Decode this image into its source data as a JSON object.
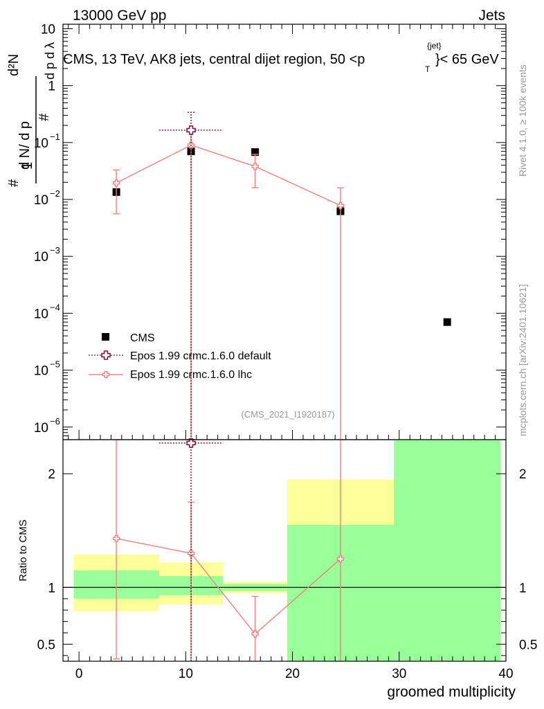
{
  "header": {
    "energy_label": "13000 GeV pp",
    "category_label": "Jets",
    "plot_title_main": "CMS, 13 TeV, AK8 jets, central dijet region, 50 <p",
    "plot_title_sub": "T",
    "plot_title_sup": "{jet}",
    "plot_title_tail": "}< 65 GeV",
    "analysis_id": "(CMS_2021_I1920187)",
    "side_label_top": "Rivet 4.1.0, ≥ 100k events",
    "side_label_bottom": "mcplots.cern.ch [arXiv:2401.10621]"
  },
  "legend": {
    "data_label": "CMS",
    "mc1_label": "Epos 1.99 crmc.1.6.0 default",
    "mc2_label": "Epos 1.99 crmc.1.6.0 lhc"
  },
  "colors": {
    "data": "#000000",
    "mc1": "#7a1a3a",
    "mc2": "#f08080",
    "band_inner": "#99ff99",
    "band_outer": "#ffff99"
  },
  "chart_data": [
    {
      "type": "scatter",
      "panel": "main",
      "y_scale": "log",
      "ylabel": "1/N dN/dp_T / (d^2N/dp_T dλ)",
      "ylim": [
        6e-07,
        12
      ],
      "yticks": [
        {
          "value": 1e-06,
          "label": "10",
          "exp": "−6"
        },
        {
          "value": 1e-05,
          "label": "10",
          "exp": "−5"
        },
        {
          "value": 0.0001,
          "label": "10",
          "exp": "−4"
        },
        {
          "value": 0.001,
          "label": "10",
          "exp": "−3"
        },
        {
          "value": 0.01,
          "label": "10",
          "exp": "−2"
        },
        {
          "value": 0.1,
          "label": "10",
          "exp": "−1"
        },
        {
          "value": 1,
          "label": "1",
          "exp": ""
        },
        {
          "value": 10,
          "label": "10",
          "exp": ""
        }
      ],
      "series": [
        {
          "name": "CMS",
          "style": "square",
          "points": [
            {
              "x": 3.5,
              "y": 0.0135
            },
            {
              "x": 10.5,
              "y": 0.07
            },
            {
              "x": 16.5,
              "y": 0.068
            },
            {
              "x": 24.5,
              "y": 0.0062
            },
            {
              "x": 34.5,
              "y": 7e-05
            }
          ]
        },
        {
          "name": "Epos 1.99 crmc.1.6.0 default",
          "style": "open-cross-dotted",
          "points": [
            {
              "x": 10.5,
              "y": 0.165,
              "ylo": 1e-07,
              "yhi": 0.34,
              "xlo": 7.5,
              "xhi": 13.5
            }
          ]
        },
        {
          "name": "Epos 1.99 crmc.1.6.0 lhc",
          "style": "open-cross-line",
          "points": [
            {
              "x": 3.5,
              "y": 0.0195,
              "ylo": 0.0056,
              "yhi": 0.033
            },
            {
              "x": 10.5,
              "y": 0.09,
              "ylo": 1e-07,
              "yhi": 0.17
            },
            {
              "x": 16.5,
              "y": 0.038,
              "ylo": 0.016,
              "yhi": 0.062
            },
            {
              "x": 24.5,
              "y": 0.0078,
              "ylo": 1e-07,
              "yhi": 0.016
            }
          ]
        }
      ]
    },
    {
      "type": "scatter",
      "panel": "ratio",
      "xlabel": "groomed multiplicity",
      "ylabel": "Ratio to CMS",
      "xlim": [
        -1.5,
        40
      ],
      "ylim": [
        0.35,
        2.3
      ],
      "xticks": [
        0,
        10,
        20,
        30,
        40
      ],
      "yticks": [
        {
          "value": 0.5,
          "label": "0.5"
        },
        {
          "value": 1,
          "label": "1"
        },
        {
          "value": 2,
          "label": "2"
        }
      ],
      "bands": [
        {
          "x0": -0.5,
          "x1": 7.5,
          "inner": [
            0.9,
            1.15
          ],
          "outer": [
            0.79,
            1.29
          ]
        },
        {
          "x0": 7.5,
          "x1": 13.5,
          "inner": [
            0.93,
            1.1
          ],
          "outer": [
            0.85,
            1.22
          ]
        },
        {
          "x0": 13.5,
          "x1": 19.5,
          "inner": [
            0.97,
            1.03
          ],
          "outer": [
            0.95,
            1.05
          ]
        },
        {
          "x0": 19.5,
          "x1": 29.5,
          "inner": [
            0.35,
            1.55
          ],
          "outer": [
            0.35,
            1.95
          ]
        },
        {
          "x0": 29.5,
          "x1": 39.5,
          "inner": [
            0.35,
            2.3
          ],
          "outer": [
            0.35,
            2.3
          ]
        }
      ],
      "series": [
        {
          "name": "Epos 1.99 crmc.1.6.0 default",
          "style": "open-cross-dotted",
          "points": [
            {
              "x": 10.5,
              "y": 2.27,
              "ylo": 0.35,
              "yhi": 2.3,
              "xlo": 7.5,
              "xhi": 13.5
            }
          ]
        },
        {
          "name": "Epos 1.99 crmc.1.6.0 lhc",
          "style": "open-cross-line",
          "points": [
            {
              "x": 3.5,
              "y": 1.43,
              "ylo": 0.37,
              "yhi": 2.3
            },
            {
              "x": 10.5,
              "y": 1.3,
              "ylo": 0.35,
              "yhi": 1.75
            },
            {
              "x": 16.5,
              "y": 0.59,
              "ylo": 0.35,
              "yhi": 0.92
            },
            {
              "x": 24.5,
              "y": 1.25,
              "ylo": 0.35,
              "yhi": 2.3
            }
          ]
        }
      ]
    }
  ]
}
